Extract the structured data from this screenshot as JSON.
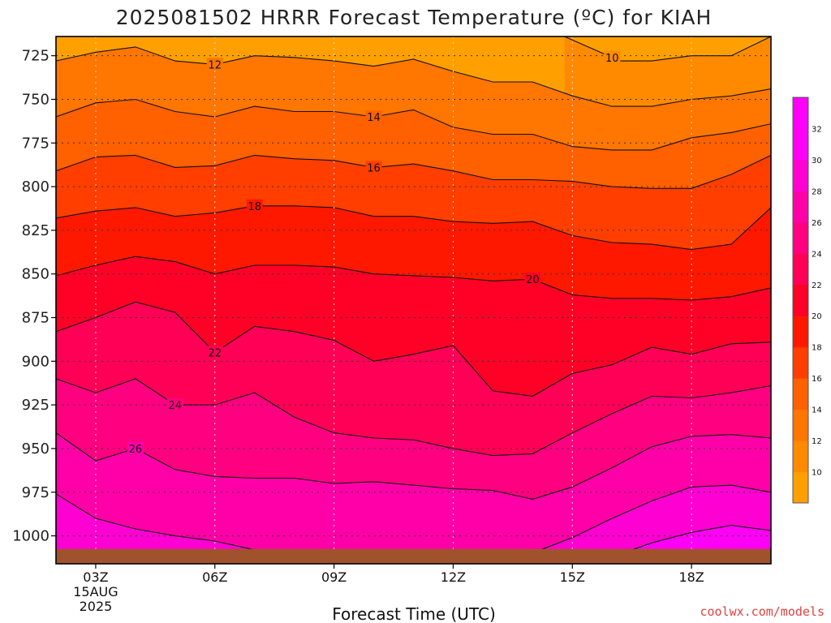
{
  "title": "2025081502 HRRR Forecast Temperature (ºC) for KIAH",
  "watermark": "coolwx.com/models",
  "watermark_color": "#e04040",
  "chart_data": {
    "type": "heatmap",
    "xlabel": "Forecast Time (UTC)",
    "ylabel": "",
    "x_ticks": [
      {
        "hour": 3,
        "label": "03Z",
        "sub": [
          "15AUG",
          "2025"
        ]
      },
      {
        "hour": 6,
        "label": "06Z",
        "sub": []
      },
      {
        "hour": 9,
        "label": "09Z",
        "sub": []
      },
      {
        "hour": 12,
        "label": "12Z",
        "sub": []
      },
      {
        "hour": 15,
        "label": "15Z",
        "sub": []
      },
      {
        "hour": 18,
        "label": "18Z",
        "sub": []
      }
    ],
    "xlim": [
      2,
      20
    ],
    "y_ticks": [
      725,
      750,
      775,
      800,
      825,
      850,
      875,
      900,
      925,
      950,
      975,
      1000
    ],
    "ylim_hPa": [
      714,
      1016
    ],
    "ground_hPa": 1007.5,
    "grid": true,
    "colorbar": {
      "ticks": [
        10,
        12,
        14,
        16,
        18,
        20,
        22,
        24,
        26,
        28,
        30,
        32
      ],
      "bands": [
        {
          "from": 8,
          "to": 10,
          "color": "#ffa000"
        },
        {
          "from": 10,
          "to": 12,
          "color": "#ff8a00"
        },
        {
          "from": 12,
          "to": 14,
          "color": "#ff7600"
        },
        {
          "from": 14,
          "to": 16,
          "color": "#ff6000"
        },
        {
          "from": 16,
          "to": 18,
          "color": "#ff3e00"
        },
        {
          "from": 18,
          "to": 20,
          "color": "#ff1800"
        },
        {
          "from": 20,
          "to": 22,
          "color": "#ff0026"
        },
        {
          "from": 22,
          "to": 24,
          "color": "#ff0056"
        },
        {
          "from": 24,
          "to": 26,
          "color": "#ff0080"
        },
        {
          "from": 26,
          "to": 28,
          "color": "#ff00a8"
        },
        {
          "from": 28,
          "to": 30,
          "color": "#ff00d2"
        },
        {
          "from": 30,
          "to": 32,
          "color": "#ff00f6"
        },
        {
          "from": 32,
          "to": 34,
          "color": "#ff00ff"
        }
      ]
    },
    "contours": [
      {
        "value": 10,
        "label": "10",
        "label_hour": 16,
        "points": [
          [
            14.8,
            714
          ],
          [
            15.4,
            720
          ],
          [
            16.2,
            728
          ],
          [
            17.0,
            728
          ],
          [
            18.0,
            725
          ],
          [
            19.0,
            725
          ],
          [
            20.0,
            714
          ]
        ]
      },
      {
        "value": 12,
        "label": "12",
        "label_hour": 6,
        "points": [
          [
            2.0,
            728
          ],
          [
            3.0,
            723
          ],
          [
            4.0,
            720
          ],
          [
            5.0,
            728
          ],
          [
            6.0,
            730
          ],
          [
            7.0,
            725
          ],
          [
            8.0,
            726
          ],
          [
            9.0,
            728
          ],
          [
            10.0,
            731
          ],
          [
            11.0,
            727
          ],
          [
            12.0,
            734
          ],
          [
            13.0,
            740
          ],
          [
            14.0,
            740
          ],
          [
            15.0,
            748
          ],
          [
            16.0,
            754
          ],
          [
            17.0,
            754
          ],
          [
            18.0,
            750
          ],
          [
            19.0,
            748
          ],
          [
            20.0,
            744
          ]
        ]
      },
      {
        "value": 14,
        "label": "14",
        "label_hour": 10,
        "points": [
          [
            2.0,
            760
          ],
          [
            3.0,
            752
          ],
          [
            4.0,
            750
          ],
          [
            5.0,
            757
          ],
          [
            6.0,
            760
          ],
          [
            7.0,
            754
          ],
          [
            8.0,
            757
          ],
          [
            9.0,
            757
          ],
          [
            10.0,
            760
          ],
          [
            11.0,
            756
          ],
          [
            12.0,
            766
          ],
          [
            13.0,
            770
          ],
          [
            14.0,
            770
          ],
          [
            15.0,
            777
          ],
          [
            16.0,
            779
          ],
          [
            17.0,
            779
          ],
          [
            18.0,
            772
          ],
          [
            19.0,
            769
          ],
          [
            20.0,
            764
          ]
        ]
      },
      {
        "value": 16,
        "label": "16",
        "label_hour": 10,
        "points": [
          [
            2.0,
            791
          ],
          [
            3.0,
            783
          ],
          [
            4.0,
            782
          ],
          [
            5.0,
            789
          ],
          [
            6.0,
            788
          ],
          [
            7.0,
            782
          ],
          [
            8.0,
            784
          ],
          [
            9.0,
            785
          ],
          [
            10.0,
            789
          ],
          [
            11.0,
            787
          ],
          [
            12.0,
            791
          ],
          [
            13.0,
            796
          ],
          [
            14.0,
            796
          ],
          [
            15.0,
            797
          ],
          [
            16.0,
            800
          ],
          [
            17.0,
            801
          ],
          [
            18.0,
            801
          ],
          [
            19.0,
            793
          ],
          [
            20.0,
            782
          ]
        ]
      },
      {
        "value": 18,
        "label": "18",
        "label_hour": 7,
        "points": [
          [
            2.0,
            818
          ],
          [
            3.0,
            814
          ],
          [
            4.0,
            812
          ],
          [
            5.0,
            817
          ],
          [
            6.0,
            815
          ],
          [
            7.0,
            811
          ],
          [
            8.0,
            811
          ],
          [
            9.0,
            812
          ],
          [
            10.0,
            817
          ],
          [
            11.0,
            817
          ],
          [
            12.0,
            820
          ],
          [
            13.0,
            821
          ],
          [
            14.0,
            820
          ],
          [
            15.0,
            828
          ],
          [
            16.0,
            832
          ],
          [
            17.0,
            833
          ],
          [
            18.0,
            836
          ],
          [
            19.0,
            833
          ],
          [
            20.0,
            812
          ]
        ]
      },
      {
        "value": 20,
        "label": "20",
        "label_hour": 14,
        "points": [
          [
            2.0,
            851
          ],
          [
            3.0,
            845
          ],
          [
            4.0,
            840
          ],
          [
            5.0,
            843
          ],
          [
            6.0,
            850
          ],
          [
            7.0,
            845
          ],
          [
            8.0,
            845
          ],
          [
            9.0,
            846
          ],
          [
            10.0,
            850
          ],
          [
            11.0,
            851
          ],
          [
            12.0,
            852
          ],
          [
            13.0,
            854
          ],
          [
            14.0,
            853
          ],
          [
            15.0,
            862
          ],
          [
            16.0,
            864
          ],
          [
            17.0,
            864
          ],
          [
            18.0,
            865
          ],
          [
            19.0,
            863
          ],
          [
            20.0,
            858
          ]
        ]
      },
      {
        "value": 22,
        "label": "22",
        "label_hour": 6,
        "points": [
          [
            2.0,
            883
          ],
          [
            3.0,
            875
          ],
          [
            4.0,
            866
          ],
          [
            5.0,
            872
          ],
          [
            6.0,
            895
          ],
          [
            7.0,
            880
          ],
          [
            8.0,
            883
          ],
          [
            9.0,
            888
          ],
          [
            10.0,
            900
          ],
          [
            11.0,
            896
          ],
          [
            12.0,
            891
          ],
          [
            13.0,
            917
          ],
          [
            14.0,
            920
          ],
          [
            15.0,
            907
          ],
          [
            16.0,
            902
          ],
          [
            17.0,
            892
          ],
          [
            18.0,
            896
          ],
          [
            19.0,
            890
          ],
          [
            20.0,
            889
          ]
        ]
      },
      {
        "value": 24,
        "label": "24",
        "label_hour": 5,
        "points": [
          [
            2.0,
            910
          ],
          [
            3.0,
            918
          ],
          [
            4.0,
            910
          ],
          [
            5.0,
            925
          ],
          [
            6.0,
            925
          ],
          [
            7.0,
            918
          ],
          [
            8.0,
            932
          ],
          [
            9.0,
            941
          ],
          [
            10.0,
            944
          ],
          [
            11.0,
            945
          ],
          [
            12.0,
            950
          ],
          [
            13.0,
            954
          ],
          [
            14.0,
            953
          ],
          [
            15.0,
            941
          ],
          [
            16.0,
            930
          ],
          [
            17.0,
            920
          ],
          [
            18.0,
            921
          ],
          [
            19.0,
            918
          ],
          [
            20.0,
            914
          ]
        ]
      },
      {
        "value": 26,
        "label": "26",
        "label_hour": 4,
        "points": [
          [
            2.0,
            941
          ],
          [
            3.0,
            957
          ],
          [
            4.0,
            950
          ],
          [
            5.0,
            962
          ],
          [
            6.0,
            966
          ],
          [
            7.0,
            967
          ],
          [
            8.0,
            967
          ],
          [
            9.0,
            970
          ],
          [
            10.0,
            969
          ],
          [
            11.0,
            971
          ],
          [
            12.0,
            973
          ],
          [
            13.0,
            974
          ],
          [
            14.0,
            979
          ],
          [
            15.0,
            972
          ],
          [
            16.0,
            961
          ],
          [
            17.0,
            949
          ],
          [
            18.0,
            943
          ],
          [
            19.0,
            942
          ],
          [
            20.0,
            944
          ]
        ]
      },
      {
        "value": 28,
        "label": "",
        "label_hour": 0,
        "points": [
          [
            2.0,
            976
          ],
          [
            3.0,
            990
          ],
          [
            4.0,
            996
          ],
          [
            5.0,
            1000
          ],
          [
            6.0,
            1003
          ],
          [
            7.0,
            1008
          ]
        ]
      },
      {
        "value": 28,
        "label": "",
        "label_hour": 0,
        "points": [
          [
            14.2,
            1008
          ],
          [
            15.0,
            1001
          ],
          [
            16.0,
            990
          ],
          [
            17.0,
            980
          ],
          [
            18.0,
            972
          ],
          [
            19.0,
            971
          ],
          [
            20.0,
            975
          ]
        ]
      },
      {
        "value": 30,
        "label": "",
        "label_hour": 0,
        "points": [
          [
            16.5,
            1008
          ],
          [
            17.0,
            1004
          ],
          [
            18.0,
            998
          ],
          [
            19.0,
            994
          ],
          [
            20.0,
            997
          ]
        ]
      }
    ]
  }
}
